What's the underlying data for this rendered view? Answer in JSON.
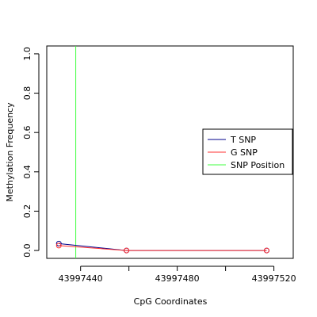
{
  "chart_data": {
    "type": "line",
    "xlabel": "CpG Coordinates",
    "ylabel": "Methylation Frequency",
    "xlim": [
      43997426,
      43997528
    ],
    "ylim": [
      -0.04,
      1.04
    ],
    "x_ticks": [
      43997440,
      43997460,
      43997480,
      43997500,
      43997520
    ],
    "x_tick_labels": [
      "43997440",
      "",
      "43997480",
      "",
      "43997520"
    ],
    "y_ticks": [
      0.0,
      0.2,
      0.4,
      0.6,
      0.8,
      1.0
    ],
    "y_tick_labels": [
      "0.0",
      "0.2",
      "0.4",
      "0.6",
      "0.8",
      "1.0"
    ],
    "grid": false,
    "legend_position": "right",
    "series": [
      {
        "name": "T SNP",
        "color": "#00008b",
        "x": [
          43997431,
          43997459,
          43997517
        ],
        "y": [
          0.035,
          0.0,
          0.0
        ]
      },
      {
        "name": "G SNP",
        "color": "#ff3030",
        "x": [
          43997431,
          43997459,
          43997517
        ],
        "y": [
          0.025,
          0.0,
          0.0
        ]
      }
    ],
    "vlines": [
      {
        "name": "SNP Position",
        "color": "#40ff40",
        "x": 43997438
      }
    ],
    "legend": [
      {
        "label": "T SNP",
        "color": "#00008b"
      },
      {
        "label": "G SNP",
        "color": "#ff3030"
      },
      {
        "label": "SNP Position",
        "color": "#40ff40"
      }
    ]
  }
}
